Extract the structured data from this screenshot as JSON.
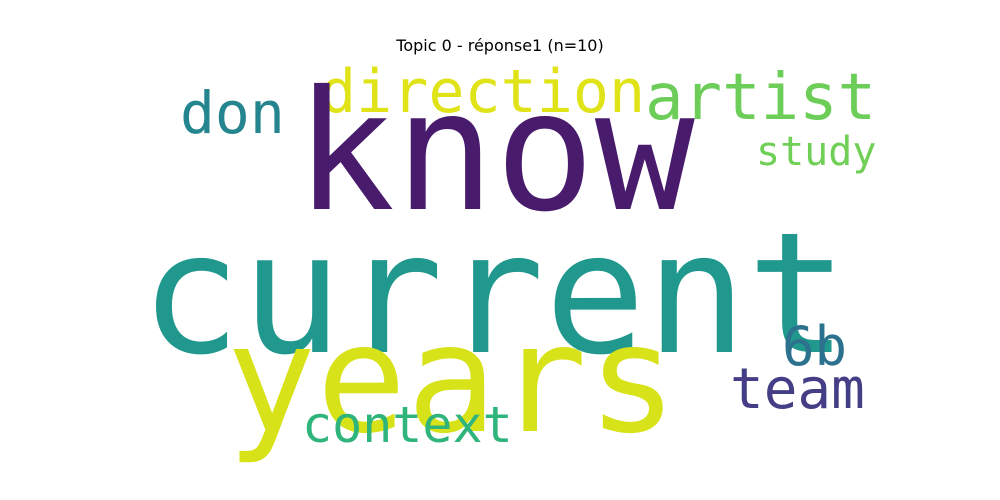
{
  "title": "Topic 0 - réponse1 (n=10)",
  "words": {
    "know": {
      "text": "know",
      "color": "#481b6d"
    },
    "current": {
      "text": "current",
      "color": "#21988d"
    },
    "years": {
      "text": "years",
      "color": "#d8e219"
    },
    "direction": {
      "text": "direction",
      "color": "#dfe318"
    },
    "artist": {
      "text": "artist",
      "color": "#6ccd59"
    },
    "don": {
      "text": "don",
      "color": "#25858e"
    },
    "study": {
      "text": "study",
      "color": "#70cf57"
    },
    "6b": {
      "text": "6b",
      "color": "#2c718e"
    },
    "team": {
      "text": "team",
      "color": "#433e85"
    },
    "context": {
      "text": "context",
      "color": "#2fb47c"
    }
  }
}
